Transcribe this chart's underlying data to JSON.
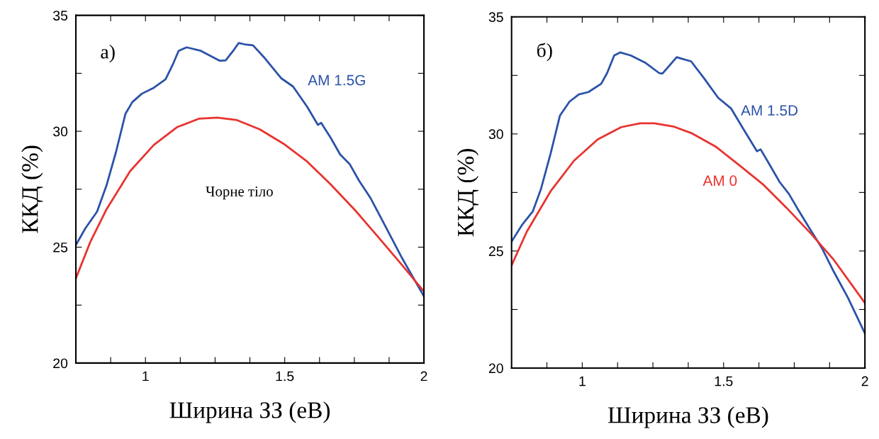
{
  "chart_data": [
    {
      "type": "line",
      "xlabel": "Ширина ЗЗ (еВ)",
      "ylabel": "ККД (%)",
      "annotations": [
        "а)"
      ],
      "xlim": [
        0.75,
        2
      ],
      "ylim": [
        20,
        35
      ],
      "xticks": [
        {
          "value": 0.875,
          "label": null
        },
        1,
        {
          "value": 1.125,
          "label": null
        },
        {
          "value": 1.25,
          "label": null
        },
        {
          "value": 1.375,
          "label": null
        },
        1.5,
        {
          "value": 1.625,
          "label": null
        },
        {
          "value": 1.75,
          "label": null
        },
        {
          "value": 1.875,
          "label": null
        },
        2
      ],
      "yticks": [
        20,
        {
          "value": 22.5,
          "label": null
        },
        25,
        {
          "value": 27.5,
          "label": null
        },
        30,
        {
          "value": 32.5,
          "label": null
        },
        35
      ],
      "grid": false,
      "legend": false,
      "marker": "none",
      "line_style": "solid",
      "series": [
        {
          "name": "AM 1.5G",
          "color": "#2b52a8",
          "x": [
            0.75,
            0.784,
            0.826,
            0.86,
            0.894,
            0.928,
            0.953,
            0.987,
            1.03,
            1.072,
            1.097,
            1.119,
            1.148,
            1.199,
            1.267,
            1.288,
            1.318,
            1.335,
            1.356,
            1.386,
            1.428,
            1.487,
            1.53,
            1.581,
            1.619,
            1.631,
            1.665,
            1.699,
            1.733,
            1.767,
            1.809,
            1.852,
            1.919,
            2.0
          ],
          "values": [
            25.09,
            25.81,
            26.53,
            27.66,
            29.1,
            30.75,
            31.26,
            31.62,
            31.88,
            32.24,
            32.85,
            33.47,
            33.62,
            33.47,
            33.04,
            33.06,
            33.52,
            33.81,
            33.75,
            33.71,
            33.16,
            32.29,
            31.93,
            31.05,
            30.28,
            30.36,
            29.72,
            29.0,
            28.59,
            27.87,
            27.1,
            26.12,
            24.58,
            22.88
          ]
        },
        {
          "name": "Чорне тіло",
          "color": "#e8332f",
          "x": [
            0.75,
            0.801,
            0.86,
            0.945,
            1.03,
            1.114,
            1.191,
            1.258,
            1.326,
            1.411,
            1.496,
            1.581,
            1.665,
            1.75,
            1.835,
            1.919,
            2.0
          ],
          "values": [
            23.65,
            25.2,
            26.63,
            28.28,
            29.41,
            30.18,
            30.54,
            30.59,
            30.49,
            30.08,
            29.46,
            28.69,
            27.71,
            26.63,
            25.45,
            24.26,
            23.09
          ]
        }
      ]
    },
    {
      "type": "line",
      "xlabel": "Ширина ЗЗ (еВ)",
      "ylabel": "ККД (%)",
      "annotations": [
        "б)"
      ],
      "xlim": [
        0.75,
        2
      ],
      "ylim": [
        20,
        35
      ],
      "xticks": [
        {
          "value": 0.875,
          "label": null
        },
        1,
        {
          "value": 1.125,
          "label": null
        },
        {
          "value": 1.25,
          "label": null
        },
        {
          "value": 1.375,
          "label": null
        },
        1.5,
        {
          "value": 1.625,
          "label": null
        },
        {
          "value": 1.75,
          "label": null
        },
        {
          "value": 1.875,
          "label": null
        },
        2
      ],
      "yticks": [
        20,
        {
          "value": 22.5,
          "label": null
        },
        25,
        {
          "value": 27.5,
          "label": null
        },
        30,
        {
          "value": 32.5,
          "label": null
        },
        35
      ],
      "grid": false,
      "legend": false,
      "marker": "none",
      "line_style": "solid",
      "series": [
        {
          "name": "AM 1.5D",
          "color": "#2b52a8",
          "x": [
            0.75,
            0.788,
            0.825,
            0.854,
            0.888,
            0.921,
            0.955,
            0.988,
            1.022,
            1.067,
            1.088,
            1.113,
            1.134,
            1.172,
            1.222,
            1.272,
            1.284,
            1.314,
            1.334,
            1.355,
            1.385,
            1.43,
            1.481,
            1.527,
            1.572,
            1.618,
            1.631,
            1.664,
            1.698,
            1.731,
            1.765,
            1.806,
            1.848,
            1.89,
            1.94,
            2.0
          ],
          "values": [
            25.4,
            26.13,
            26.69,
            27.65,
            29.16,
            30.78,
            31.38,
            31.69,
            31.79,
            32.14,
            32.6,
            33.35,
            33.48,
            33.35,
            33.05,
            32.6,
            32.58,
            33.0,
            33.28,
            33.2,
            33.1,
            32.39,
            31.54,
            31.08,
            30.17,
            29.26,
            29.34,
            28.66,
            27.95,
            27.44,
            26.74,
            25.93,
            25.12,
            24.11,
            23.0,
            21.48
          ]
        },
        {
          "name": "AM 0",
          "color": "#e8332f",
          "x": [
            0.75,
            0.804,
            0.888,
            0.971,
            1.055,
            1.138,
            1.205,
            1.255,
            1.322,
            1.389,
            1.472,
            1.556,
            1.639,
            1.723,
            1.806,
            1.89,
            2.0
          ],
          "values": [
            24.39,
            25.83,
            27.55,
            28.86,
            29.77,
            30.29,
            30.45,
            30.45,
            30.32,
            30.02,
            29.46,
            28.66,
            27.85,
            26.84,
            25.78,
            24.62,
            22.78
          ]
        }
      ]
    }
  ]
}
